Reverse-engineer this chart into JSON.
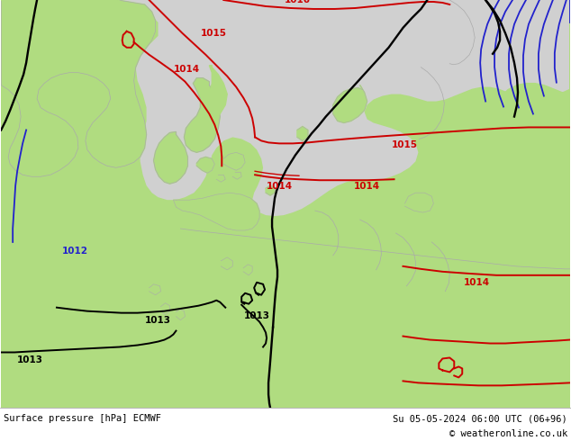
{
  "title_left": "Surface pressure [hPa] ECMWF",
  "title_right": "Su 05-05-2024 06:00 UTC (06+96)",
  "copyright": "© weatheronline.co.uk",
  "fig_width": 6.34,
  "fig_height": 4.9,
  "dpi": 100,
  "bg_green": "#b0dc80",
  "bg_sea": "#d0d0d0",
  "bg_land_outline": "#aaaaaa",
  "red": "#cc0000",
  "black": "#000000",
  "blue": "#2222cc",
  "footer_fs": 7.5,
  "label_fs": 7.5,
  "lw": 1.4
}
